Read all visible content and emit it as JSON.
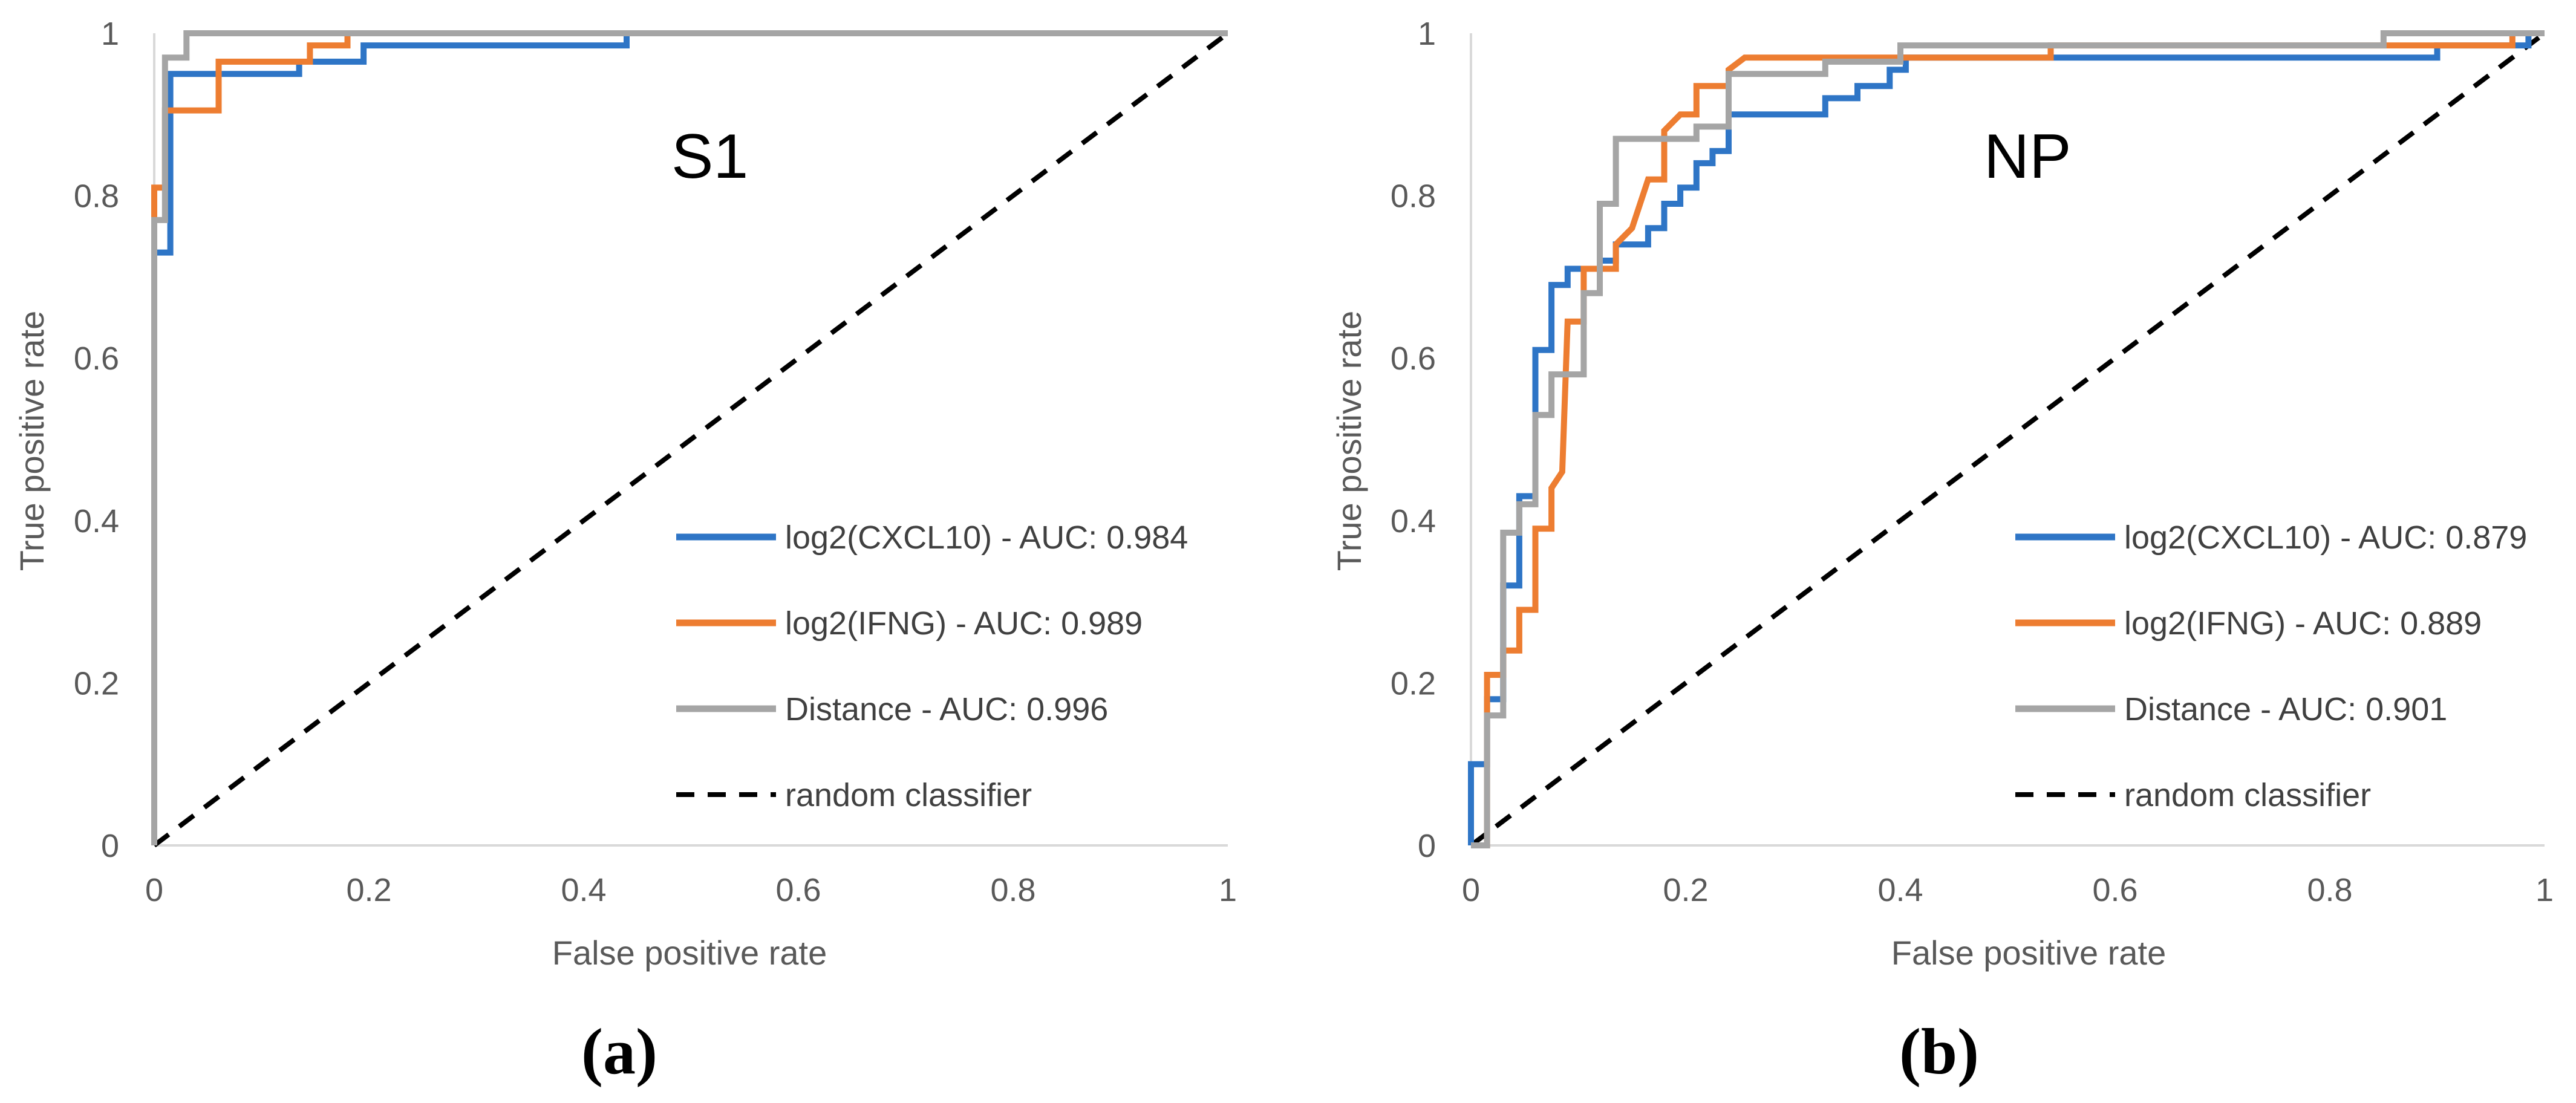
{
  "chart_data": [
    {
      "type": "line",
      "title": "S1",
      "caption": "(a)",
      "xlabel": "False positive rate",
      "ylabel": "True positive rate",
      "xlim": [
        0,
        1
      ],
      "ylim": [
        0,
        1
      ],
      "x_ticks": [
        "0",
        "0.2",
        "0.4",
        "0.6",
        "0.8",
        "1"
      ],
      "y_ticks": [
        "0",
        "0.2",
        "0.4",
        "0.6",
        "0.8",
        "1"
      ],
      "legend_position": "lower-right",
      "series": [
        {
          "name": "log2(CXCL10) - AUC: 0.984",
          "color": "#2E75C6",
          "points": [
            [
              0,
              0
            ],
            [
              0,
              0.73
            ],
            [
              0.015,
              0.73
            ],
            [
              0.015,
              0.95
            ],
            [
              0.135,
              0.95
            ],
            [
              0.135,
              0.965
            ],
            [
              0.195,
              0.965
            ],
            [
              0.195,
              0.985
            ],
            [
              0.44,
              0.985
            ],
            [
              0.44,
              1
            ],
            [
              1,
              1
            ]
          ]
        },
        {
          "name": "log2(IFNG) - AUC: 0.989",
          "color": "#ED7D31",
          "points": [
            [
              0,
              0
            ],
            [
              0,
              0.81
            ],
            [
              0.01,
              0.81
            ],
            [
              0.01,
              0.905
            ],
            [
              0.06,
              0.905
            ],
            [
              0.06,
              0.965
            ],
            [
              0.145,
              0.965
            ],
            [
              0.145,
              0.985
            ],
            [
              0.18,
              0.985
            ],
            [
              0.18,
              1
            ],
            [
              1,
              1
            ]
          ]
        },
        {
          "name": "Distance - AUC: 0.996",
          "color": "#A5A5A5",
          "points": [
            [
              0,
              0
            ],
            [
              0,
              0.77
            ],
            [
              0.01,
              0.77
            ],
            [
              0.01,
              0.97
            ],
            [
              0.03,
              0.97
            ],
            [
              0.03,
              1
            ],
            [
              1,
              1
            ]
          ]
        },
        {
          "name": "random classifier",
          "color": "#000000",
          "dashed": true,
          "points": [
            [
              0,
              0
            ],
            [
              1,
              1
            ]
          ]
        }
      ]
    },
    {
      "type": "line",
      "title": "NP",
      "caption": "(b)",
      "xlabel": "False positive rate",
      "ylabel": "True positive rate",
      "xlim": [
        0,
        1
      ],
      "ylim": [
        0,
        1
      ],
      "x_ticks": [
        "0",
        "0.2",
        "0.4",
        "0.6",
        "0.8",
        "1"
      ],
      "y_ticks": [
        "0",
        "0.2",
        "0.4",
        "0.6",
        "0.8",
        "1"
      ],
      "legend_position": "lower-right",
      "series": [
        {
          "name": "log2(CXCL10) - AUC: 0.879",
          "color": "#2E75C6",
          "points": [
            [
              0,
              0
            ],
            [
              0,
              0.1
            ],
            [
              0.015,
              0.1
            ],
            [
              0.015,
              0.18
            ],
            [
              0.03,
              0.18
            ],
            [
              0.03,
              0.32
            ],
            [
              0.045,
              0.32
            ],
            [
              0.045,
              0.43
            ],
            [
              0.06,
              0.43
            ],
            [
              0.06,
              0.61
            ],
            [
              0.075,
              0.61
            ],
            [
              0.075,
              0.69
            ],
            [
              0.09,
              0.69
            ],
            [
              0.09,
              0.71
            ],
            [
              0.12,
              0.71
            ],
            [
              0.12,
              0.72
            ],
            [
              0.135,
              0.72
            ],
            [
              0.135,
              0.74
            ],
            [
              0.165,
              0.74
            ],
            [
              0.165,
              0.76
            ],
            [
              0.18,
              0.76
            ],
            [
              0.18,
              0.79
            ],
            [
              0.195,
              0.79
            ],
            [
              0.195,
              0.81
            ],
            [
              0.21,
              0.81
            ],
            [
              0.21,
              0.84
            ],
            [
              0.225,
              0.84
            ],
            [
              0.225,
              0.855
            ],
            [
              0.24,
              0.855
            ],
            [
              0.24,
              0.9
            ],
            [
              0.33,
              0.9
            ],
            [
              0.33,
              0.92
            ],
            [
              0.36,
              0.92
            ],
            [
              0.36,
              0.935
            ],
            [
              0.39,
              0.935
            ],
            [
              0.39,
              0.955
            ],
            [
              0.405,
              0.955
            ],
            [
              0.405,
              0.97
            ],
            [
              0.54,
              0.97
            ],
            [
              0.54,
              0.97
            ],
            [
              0.9,
              0.97
            ],
            [
              0.9,
              0.985
            ],
            [
              0.985,
              0.985
            ],
            [
              0.985,
              1
            ],
            [
              1,
              1
            ]
          ]
        },
        {
          "name": "log2(IFNG) - AUC: 0.889",
          "color": "#ED7D31",
          "points": [
            [
              0,
              0
            ],
            [
              0.015,
              0
            ],
            [
              0.015,
              0.21
            ],
            [
              0.03,
              0.21
            ],
            [
              0.03,
              0.24
            ],
            [
              0.045,
              0.24
            ],
            [
              0.045,
              0.29
            ],
            [
              0.06,
              0.29
            ],
            [
              0.06,
              0.39
            ],
            [
              0.075,
              0.39
            ],
            [
              0.075,
              0.44
            ],
            [
              0.085,
              0.46
            ],
            [
              0.09,
              0.645
            ],
            [
              0.105,
              0.645
            ],
            [
              0.105,
              0.71
            ],
            [
              0.135,
              0.71
            ],
            [
              0.135,
              0.74
            ],
            [
              0.15,
              0.76
            ],
            [
              0.165,
              0.82
            ],
            [
              0.18,
              0.82
            ],
            [
              0.18,
              0.88
            ],
            [
              0.195,
              0.9
            ],
            [
              0.21,
              0.9
            ],
            [
              0.21,
              0.935
            ],
            [
              0.24,
              0.935
            ],
            [
              0.24,
              0.955
            ],
            [
              0.255,
              0.97
            ],
            [
              0.33,
              0.97
            ],
            [
              0.33,
              0.97
            ],
            [
              0.54,
              0.97
            ],
            [
              0.54,
              0.985
            ],
            [
              0.97,
              0.985
            ],
            [
              0.97,
              1
            ],
            [
              1,
              1
            ]
          ]
        },
        {
          "name": "Distance - AUC: 0.901",
          "color": "#A5A5A5",
          "points": [
            [
              0,
              0
            ],
            [
              0.015,
              0
            ],
            [
              0.015,
              0.16
            ],
            [
              0.03,
              0.16
            ],
            [
              0.03,
              0.385
            ],
            [
              0.045,
              0.385
            ],
            [
              0.045,
              0.42
            ],
            [
              0.06,
              0.42
            ],
            [
              0.06,
              0.53
            ],
            [
              0.075,
              0.53
            ],
            [
              0.075,
              0.58
            ],
            [
              0.105,
              0.58
            ],
            [
              0.105,
              0.68
            ],
            [
              0.12,
              0.68
            ],
            [
              0.12,
              0.79
            ],
            [
              0.135,
              0.79
            ],
            [
              0.135,
              0.87
            ],
            [
              0.18,
              0.87
            ],
            [
              0.18,
              0.87
            ],
            [
              0.21,
              0.87
            ],
            [
              0.21,
              0.885
            ],
            [
              0.24,
              0.885
            ],
            [
              0.24,
              0.95
            ],
            [
              0.33,
              0.95
            ],
            [
              0.33,
              0.965
            ],
            [
              0.4,
              0.965
            ],
            [
              0.4,
              0.985
            ],
            [
              0.85,
              0.985
            ],
            [
              0.85,
              1
            ],
            [
              1,
              1
            ]
          ]
        },
        {
          "name": "random classifier",
          "color": "#000000",
          "dashed": true,
          "points": [
            [
              0,
              0
            ],
            [
              1,
              1
            ]
          ]
        }
      ]
    }
  ]
}
